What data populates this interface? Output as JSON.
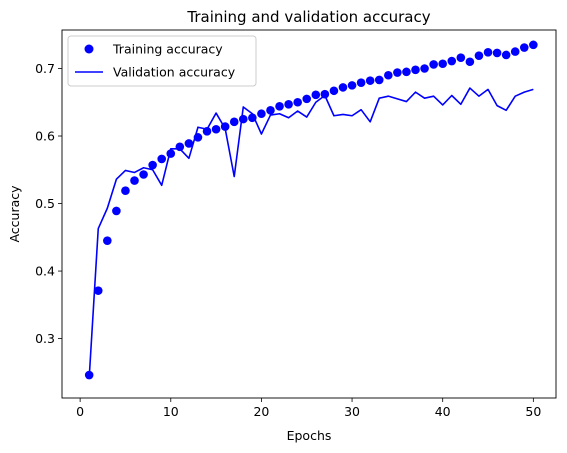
{
  "chart_data": {
    "type": "line",
    "title": "Training and validation accuracy",
    "xlabel": "Epochs",
    "ylabel": "Accuracy",
    "xlim": [
      -2,
      52.5
    ],
    "ylim": [
      0.212,
      0.757
    ],
    "xticks": [
      0,
      10,
      20,
      30,
      40,
      50
    ],
    "yticks": [
      0.3,
      0.4,
      0.5,
      0.6,
      0.7
    ],
    "grid": false,
    "legend_position": "top-left",
    "x": [
      1,
      2,
      3,
      4,
      5,
      6,
      7,
      8,
      9,
      10,
      11,
      12,
      13,
      14,
      15,
      16,
      17,
      18,
      19,
      20,
      21,
      22,
      23,
      24,
      25,
      26,
      27,
      28,
      29,
      30,
      31,
      32,
      33,
      34,
      35,
      36,
      37,
      38,
      39,
      40,
      41,
      42,
      43,
      44,
      45,
      46,
      47,
      48,
      49,
      50
    ],
    "series": [
      {
        "name": "Training accuracy",
        "style": "markers",
        "color": "#0000ff",
        "values": [
          0.246,
          0.371,
          0.445,
          0.489,
          0.519,
          0.534,
          0.543,
          0.557,
          0.566,
          0.574,
          0.584,
          0.589,
          0.598,
          0.607,
          0.61,
          0.614,
          0.621,
          0.625,
          0.627,
          0.633,
          0.638,
          0.644,
          0.647,
          0.65,
          0.655,
          0.661,
          0.662,
          0.667,
          0.672,
          0.675,
          0.679,
          0.682,
          0.683,
          0.69,
          0.694,
          0.695,
          0.698,
          0.7,
          0.706,
          0.707,
          0.711,
          0.716,
          0.71,
          0.719,
          0.724,
          0.723,
          0.72,
          0.725,
          0.731,
          0.735
        ]
      },
      {
        "name": "Validation accuracy",
        "style": "line",
        "color": "#0000ff",
        "values": [
          0.242,
          0.463,
          0.493,
          0.536,
          0.549,
          0.546,
          0.553,
          0.55,
          0.527,
          0.581,
          0.581,
          0.567,
          0.613,
          0.61,
          0.634,
          0.611,
          0.54,
          0.643,
          0.633,
          0.603,
          0.631,
          0.633,
          0.627,
          0.637,
          0.628,
          0.65,
          0.66,
          0.63,
          0.632,
          0.63,
          0.639,
          0.621,
          0.656,
          0.659,
          0.655,
          0.651,
          0.665,
          0.656,
          0.659,
          0.646,
          0.66,
          0.647,
          0.671,
          0.659,
          0.669,
          0.645,
          0.638,
          0.659,
          0.665,
          0.669
        ]
      }
    ]
  }
}
